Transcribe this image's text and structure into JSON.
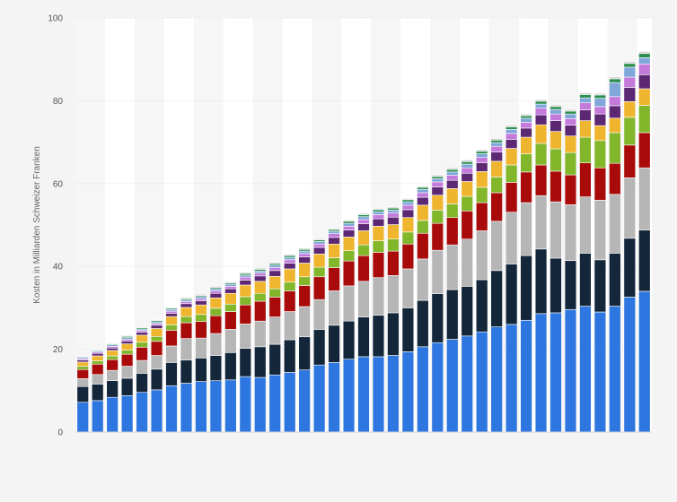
{
  "chart_data": {
    "type": "bar",
    "stacked": true,
    "ylabel": "Kosten in Milliarden Schweizer Franken",
    "xlabel": "",
    "ylim": [
      0,
      100
    ],
    "yticks": [
      "0",
      "20",
      "40",
      "60",
      "80",
      "100"
    ],
    "grid": true,
    "legend": "none",
    "bar_count": 39,
    "series": [
      {
        "color": "#2f77e0",
        "values": [
          7.2,
          7.6,
          8.4,
          8.8,
          9.6,
          10.2,
          11.2,
          11.8,
          12.2,
          12.4,
          12.6,
          13.4,
          13.2,
          13.8,
          14.4,
          15.0,
          16.2,
          16.8,
          17.6,
          18.2,
          18.2,
          18.5,
          19.4,
          20.6,
          21.6,
          22.4,
          23.2,
          24.2,
          25.4,
          26.0,
          27.0,
          28.6,
          28.8,
          29.6,
          30.4,
          29.0,
          30.4,
          32.6,
          34.0
        ]
      },
      {
        "color": "#13263a",
        "values": [
          3.8,
          4.0,
          4.0,
          4.2,
          4.6,
          5.0,
          5.6,
          5.6,
          5.7,
          6.1,
          6.6,
          6.8,
          7.4,
          7.4,
          7.9,
          8.0,
          8.6,
          9.0,
          9.2,
          9.6,
          10.0,
          10.3,
          10.6,
          11.2,
          11.8,
          12.0,
          12.0,
          12.6,
          13.6,
          14.6,
          15.6,
          15.6,
          13.2,
          11.8,
          12.8,
          12.6,
          12.8,
          14.2,
          14.8
        ]
      },
      {
        "color": "#b6b6b6",
        "values": [
          1.9,
          2.3,
          2.5,
          2.9,
          3.1,
          3.3,
          4.0,
          5.2,
          4.8,
          5.3,
          5.6,
          5.9,
          6.2,
          6.6,
          6.8,
          7.3,
          7.2,
          8.3,
          8.5,
          8.6,
          9.1,
          9.0,
          9.4,
          10.0,
          10.5,
          10.8,
          11.4,
          11.8,
          11.9,
          12.5,
          12.8,
          12.9,
          13.6,
          13.5,
          13.6,
          14.4,
          14.2,
          14.6,
          15.0
        ]
      },
      {
        "color": "#a90b0b",
        "values": [
          2.2,
          2.5,
          2.6,
          2.9,
          3.2,
          3.4,
          3.8,
          3.8,
          4.0,
          4.3,
          4.3,
          4.6,
          4.8,
          4.8,
          5.0,
          5.1,
          5.5,
          5.6,
          6.0,
          6.2,
          6.1,
          5.9,
          6.0,
          6.2,
          6.5,
          6.6,
          6.8,
          6.8,
          6.9,
          7.2,
          7.4,
          7.4,
          7.4,
          7.2,
          8.2,
          7.8,
          7.5,
          7.9,
          8.5
        ]
      },
      {
        "color": "#82b72b",
        "values": [
          0.8,
          0.8,
          0.9,
          1.0,
          1.2,
          1.2,
          1.3,
          1.5,
          1.7,
          1.8,
          1.8,
          2.0,
          1.9,
          2.0,
          2.1,
          2.1,
          2.3,
          2.4,
          2.5,
          2.6,
          2.8,
          2.9,
          2.9,
          3.1,
          3.2,
          3.3,
          3.5,
          3.7,
          3.8,
          4.2,
          4.4,
          5.2,
          5.4,
          5.4,
          6.2,
          6.6,
          7.4,
          6.7,
          6.6
        ]
      },
      {
        "color": "#f0b52e",
        "values": [
          1.0,
          1.2,
          1.3,
          1.5,
          1.7,
          1.9,
          2.0,
          2.2,
          2.3,
          2.5,
          2.6,
          2.8,
          2.9,
          3.0,
          3.2,
          3.3,
          3.2,
          3.3,
          3.3,
          3.4,
          3.5,
          3.5,
          3.5,
          3.7,
          3.6,
          3.7,
          3.6,
          3.8,
          3.8,
          4.0,
          4.0,
          4.5,
          4.2,
          4.0,
          4.0,
          3.6,
          3.5,
          3.8,
          4.0
        ]
      },
      {
        "color": "#5c2873",
        "values": [
          0.5,
          0.6,
          0.6,
          0.7,
          0.7,
          0.8,
          0.8,
          0.9,
          1.0,
          1.1,
          1.1,
          1.2,
          1.3,
          1.4,
          1.4,
          1.5,
          1.6,
          1.6,
          1.7,
          1.7,
          1.8,
          1.8,
          1.9,
          1.9,
          2.0,
          2.0,
          2.0,
          2.1,
          2.2,
          2.2,
          2.2,
          2.4,
          2.6,
          2.6,
          2.6,
          2.8,
          3.0,
          3.4,
          3.4
        ]
      },
      {
        "color": "#c47adb",
        "values": [
          0.3,
          0.3,
          0.4,
          0.4,
          0.4,
          0.4,
          0.5,
          0.5,
          0.5,
          0.6,
          0.6,
          0.7,
          0.7,
          0.7,
          0.8,
          0.8,
          0.8,
          0.9,
          0.9,
          1.0,
          1.0,
          1.0,
          1.1,
          1.1,
          1.2,
          1.2,
          1.3,
          1.3,
          1.4,
          1.4,
          1.4,
          1.6,
          1.6,
          1.6,
          1.7,
          1.8,
          2.2,
          2.5,
          2.6
        ]
      },
      {
        "color": "#7fa7d9",
        "values": [
          0.3,
          0.3,
          0.4,
          0.4,
          0.4,
          0.4,
          0.4,
          0.4,
          0.5,
          0.5,
          0.5,
          0.5,
          0.5,
          0.6,
          0.6,
          0.6,
          0.6,
          0.6,
          0.7,
          0.7,
          0.7,
          0.7,
          0.8,
          0.8,
          0.8,
          0.8,
          0.9,
          0.9,
          0.9,
          1.0,
          1.0,
          1.0,
          1.1,
          1.1,
          1.2,
          2.0,
          3.4,
          2.4,
          1.5
        ]
      },
      {
        "color": "#2a8f4e",
        "values": [
          0.2,
          0.2,
          0.2,
          0.3,
          0.3,
          0.3,
          0.3,
          0.3,
          0.3,
          0.3,
          0.3,
          0.4,
          0.4,
          0.4,
          0.4,
          0.4,
          0.4,
          0.4,
          0.5,
          0.5,
          0.5,
          0.5,
          0.5,
          0.5,
          0.5,
          0.6,
          0.6,
          0.6,
          0.6,
          0.6,
          0.6,
          0.7,
          0.7,
          0.7,
          0.8,
          0.8,
          0.9,
          0.9,
          1.0
        ]
      },
      {
        "color": "#d2d2d2",
        "values": [
          0.2,
          0.2,
          0.2,
          0.2,
          0.2,
          0.2,
          0.2,
          0.2,
          0.3,
          0.3,
          0.3,
          0.3,
          0.3,
          0.3,
          0.3,
          0.3,
          0.3,
          0.3,
          0.3,
          0.3,
          0.3,
          0.3,
          0.3,
          0.3,
          0.4,
          0.4,
          0.4,
          0.4,
          0.4,
          0.4,
          0.4,
          0.4,
          0.4,
          0.4,
          0.4,
          0.4,
          0.5,
          0.5,
          0.5
        ]
      }
    ]
  }
}
